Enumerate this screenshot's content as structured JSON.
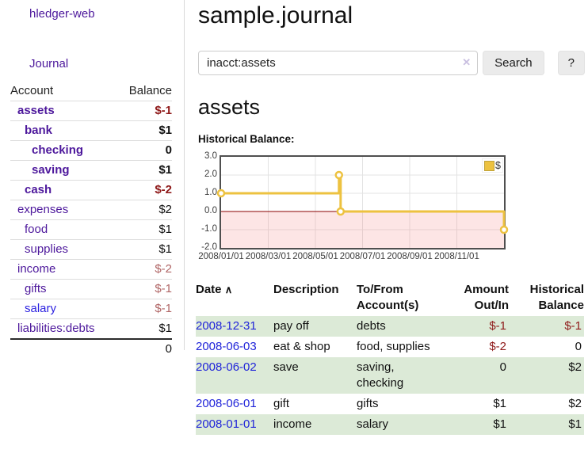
{
  "app": {
    "title": "hledger-web"
  },
  "sidebar": {
    "journal_link": "Journal",
    "accounts": {
      "account_header": "Account",
      "balance_header": "Balance",
      "rows": [
        {
          "account": "assets",
          "balance": "$-1",
          "indent": 1,
          "current": true,
          "link_style": "purple",
          "balance_style": "neg-strong"
        },
        {
          "account": "bank",
          "balance": "$1",
          "indent": 2,
          "current": true,
          "link_style": "purple",
          "balance_style": "pos"
        },
        {
          "account": "checking",
          "balance": "0",
          "indent": 3,
          "current": true,
          "link_style": "purple",
          "balance_style": "pos"
        },
        {
          "account": "saving",
          "balance": "$1",
          "indent": 3,
          "current": true,
          "link_style": "purple",
          "balance_style": "pos"
        },
        {
          "account": "cash",
          "balance": "$-2",
          "indent": 2,
          "current": true,
          "link_style": "purple",
          "balance_style": "neg-strong"
        },
        {
          "account": "expenses",
          "balance": "$2",
          "indent": 1,
          "current": false,
          "link_style": "purple",
          "balance_style": "pos"
        },
        {
          "account": "food",
          "balance": "$1",
          "indent": 2,
          "current": false,
          "link_style": "purple",
          "balance_style": "pos"
        },
        {
          "account": "supplies",
          "balance": "$1",
          "indent": 2,
          "current": false,
          "link_style": "purple",
          "balance_style": "pos"
        },
        {
          "account": "income",
          "balance": "$-2",
          "indent": 1,
          "current": false,
          "link_style": "purple",
          "balance_style": "neg-muted"
        },
        {
          "account": "gifts",
          "balance": "$-1",
          "indent": 2,
          "current": false,
          "link_style": "purple",
          "balance_style": "neg-muted"
        },
        {
          "account": "salary",
          "balance": "$-1",
          "indent": 2,
          "current": false,
          "link_style": "blue",
          "balance_style": "neg-muted"
        },
        {
          "account": "liabilities:debts",
          "balance": "$1",
          "indent": 1,
          "current": false,
          "link_style": "purple",
          "balance_style": "pos"
        }
      ],
      "total": "0"
    }
  },
  "header": {
    "title": "sample.journal"
  },
  "search": {
    "value": "inacct:assets",
    "clear_icon": "✕",
    "button_label": "Search",
    "help_label": "?"
  },
  "account_page": {
    "heading": "assets",
    "chart_label": "Historical Balance:"
  },
  "chart_data": {
    "type": "line",
    "title": "Historical Balance:",
    "series": [
      {
        "name": "$",
        "color": "#edc240",
        "step": "after",
        "points": [
          {
            "date": "2008-01-01",
            "x": 0,
            "y": 1
          },
          {
            "date": "2008-06-01",
            "x": 5.0,
            "y": 2
          },
          {
            "date": "2008-06-03",
            "x": 5.07,
            "y": 0
          },
          {
            "date": "2008-12-31",
            "x": 12,
            "y": -1
          }
        ]
      }
    ],
    "x_axis": {
      "labels": [
        "2008/01/01",
        "2008/03/01",
        "2008/05/01",
        "2008/07/01",
        "2008/09/01",
        "2008/11/01"
      ],
      "tick_x": [
        0,
        2,
        4,
        6,
        8,
        10
      ],
      "range": [
        0,
        12
      ]
    },
    "y_axis": {
      "tick_labels": [
        "3.0",
        "2.0",
        "1.0",
        "0.0",
        "-1.0",
        "-2.0"
      ],
      "tick_values": [
        3,
        2,
        1,
        0,
        -1,
        -2
      ],
      "range": [
        -2,
        3
      ]
    },
    "grid": true,
    "zero_line_color": "#8b0000",
    "negative_fill": "rgba(245,110,110,0.18)",
    "legend": {
      "label": "$",
      "swatch_color": "#edc240",
      "position": "top-right"
    }
  },
  "register": {
    "headers": {
      "date": "Date",
      "sort_icon": "∧",
      "description": "Description",
      "accounts": "To/From Account(s)",
      "amount": "Amount Out/In",
      "balance": "Historical Balance"
    },
    "rows": [
      {
        "date": "2008-12-31",
        "description": "pay off",
        "accounts": "debts",
        "amount": "$-1",
        "balance": "$-1",
        "amount_neg": true,
        "balance_neg": true,
        "stripe": true
      },
      {
        "date": "2008-06-03",
        "description": "eat & shop",
        "accounts": "food, supplies",
        "amount": "$-2",
        "balance": "0",
        "amount_neg": true,
        "balance_neg": false,
        "stripe": false
      },
      {
        "date": "2008-06-02",
        "description": "save",
        "accounts": "saving, checking",
        "amount": "0",
        "balance": "$2",
        "amount_neg": false,
        "balance_neg": false,
        "stripe": true
      },
      {
        "date": "2008-06-01",
        "description": "gift",
        "accounts": "gifts",
        "amount": "$1",
        "balance": "$2",
        "amount_neg": false,
        "balance_neg": false,
        "stripe": false
      },
      {
        "date": "2008-01-01",
        "description": "income",
        "accounts": "salary",
        "amount": "$1",
        "balance": "$1",
        "amount_neg": false,
        "balance_neg": false,
        "stripe": true
      }
    ]
  },
  "colors": {
    "link_purple": "#4d189c",
    "link_blue": "#2024d9",
    "negative_strong": "#8f1a1a",
    "negative_muted": "#b06565",
    "stripe_green": "#dcead7",
    "series_gold": "#edc240"
  }
}
